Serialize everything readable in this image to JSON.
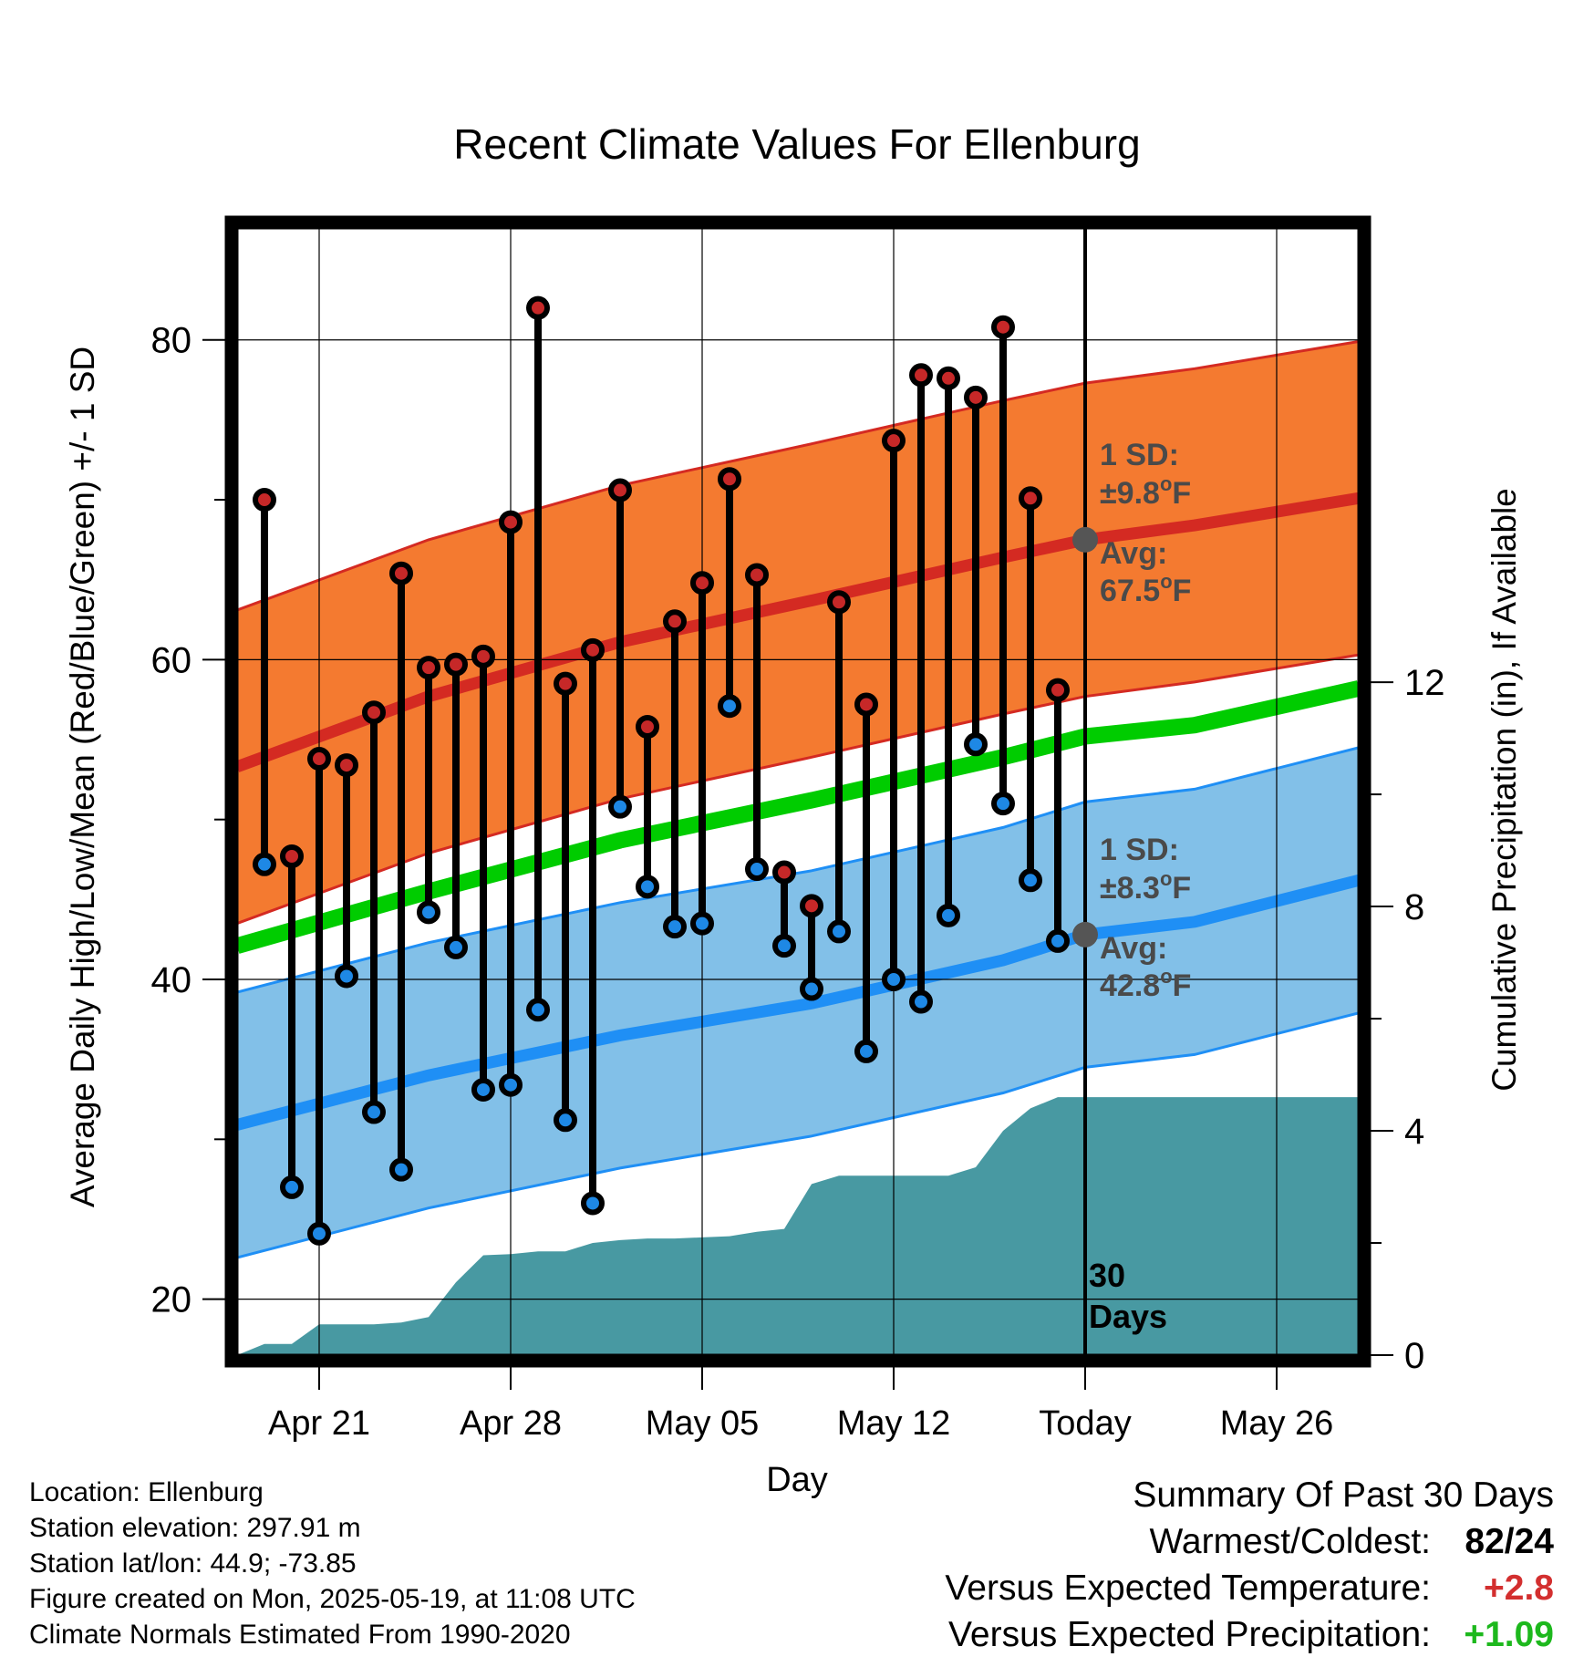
{
  "title": "Recent Climate Values For Ellenburg",
  "colors": {
    "high_sd_band": "#f47a30",
    "high_line": "#d42a22",
    "low_sd_band": "#82c0e8",
    "low_line": "#1f8ff5",
    "mean_line": "#00cc00",
    "precip": "#4899a2",
    "marker_high": "#c62828",
    "marker_low": "#1e88e5",
    "avg_marker": "#555555",
    "positive_temp": "#d32f2f",
    "positive_precip": "#1db81d"
  },
  "chart_data": {
    "type": "line",
    "title": "Recent Climate Values For Ellenburg",
    "xlabel": "Day",
    "ylabel": "Average Daily High/Low/Mean (Red/Blue/Green) +/- 1 SD",
    "ylabel_right": "Cumulative Precipitation (in), If Available",
    "x_ticks": [
      "Apr 21",
      "Apr 28",
      "May 05",
      "May 12",
      "Today",
      "May 26"
    ],
    "x_start": "2025-04-18",
    "x_end": "2025-05-29",
    "today": "2025-05-19",
    "ylim": [
      16.5,
      87
    ],
    "y_ticks": [
      20,
      40,
      60,
      80
    ],
    "ylim_right": [
      0,
      20.1
    ],
    "y_ticks_right": [
      0,
      4,
      8,
      12
    ],
    "grid": true,
    "daily_dates": [
      "2025-04-19",
      "2025-04-20",
      "2025-04-21",
      "2025-04-22",
      "2025-04-23",
      "2025-04-24",
      "2025-04-25",
      "2025-04-26",
      "2025-04-27",
      "2025-04-28",
      "2025-04-29",
      "2025-04-30",
      "2025-05-01",
      "2025-05-02",
      "2025-05-03",
      "2025-05-04",
      "2025-05-05",
      "2025-05-06",
      "2025-05-07",
      "2025-05-08",
      "2025-05-09",
      "2025-05-10",
      "2025-05-11",
      "2025-05-12",
      "2025-05-13",
      "2025-05-14",
      "2025-05-15",
      "2025-05-16",
      "2025-05-17",
      "2025-05-18"
    ],
    "daily_high": [
      70,
      47.7,
      53.8,
      53.4,
      56.7,
      65.4,
      59.5,
      59.7,
      60.2,
      68.6,
      82,
      58.5,
      60.6,
      70.6,
      55.8,
      62.4,
      64.8,
      71.3,
      65.3,
      46.7,
      44.6,
      63.6,
      57.2,
      73.7,
      77.8,
      77.6,
      76.4,
      80.8,
      70.1,
      58.1
    ],
    "daily_low": [
      47.2,
      27,
      24.1,
      40.2,
      31.7,
      28.1,
      44.2,
      42,
      33.1,
      33.4,
      38.1,
      31.2,
      26,
      50.8,
      45.8,
      43.3,
      43.5,
      57.1,
      46.9,
      42.1,
      39.4,
      43,
      35.5,
      40,
      38.6,
      44,
      54.7,
      51,
      46.2,
      42.4
    ],
    "normal_dates": [
      "2025-04-18",
      "2025-04-25",
      "2025-05-02",
      "2025-05-09",
      "2025-05-16",
      "2025-05-19",
      "2025-05-23",
      "2025-05-29"
    ],
    "normal_high": [
      53.3,
      57.7,
      61.1,
      63.7,
      66.4,
      67.5,
      68.4,
      70.1
    ],
    "high_sd": 9.8,
    "normal_low": [
      30.9,
      34,
      36.5,
      38.5,
      41.2,
      42.8,
      43.6,
      46.2
    ],
    "low_sd": 8.3,
    "normal_mean": [
      42.1,
      45.5,
      48.7,
      51.2,
      53.9,
      55.2,
      55.9,
      58.2
    ],
    "precip_dates": [
      "2025-04-18",
      "2025-04-19",
      "2025-04-20",
      "2025-04-21",
      "2025-04-22",
      "2025-04-23",
      "2025-04-24",
      "2025-04-25",
      "2025-04-26",
      "2025-04-27",
      "2025-04-28",
      "2025-04-29",
      "2025-04-30",
      "2025-05-01",
      "2025-05-02",
      "2025-05-03",
      "2025-05-04",
      "2025-05-05",
      "2025-05-06",
      "2025-05-07",
      "2025-05-08",
      "2025-05-09",
      "2025-05-10",
      "2025-05-11",
      "2025-05-12",
      "2025-05-13",
      "2025-05-14",
      "2025-05-15",
      "2025-05-16",
      "2025-05-17",
      "2025-05-18",
      "2025-05-19",
      "2025-05-29"
    ],
    "precip_cumulative": [
      0,
      0.2,
      0.2,
      0.55,
      0.55,
      0.55,
      0.58,
      0.68,
      1.3,
      1.78,
      1.8,
      1.85,
      1.85,
      2.0,
      2.05,
      2.08,
      2.08,
      2.1,
      2.12,
      2.2,
      2.25,
      3.05,
      3.2,
      3.2,
      3.2,
      3.2,
      3.2,
      3.35,
      4.0,
      4.4,
      4.6,
      4.6,
      4.6
    ],
    "annotations": {
      "high_sd_label": "1 SD:",
      "high_sd_value": "±9.8",
      "high_avg_label": "Avg:",
      "high_avg_value": "67.5",
      "low_sd_label": "1 SD:",
      "low_sd_value": "±8.3",
      "low_avg_label": "Avg:",
      "low_avg_value": "42.8",
      "degree_mark": "o",
      "unit": "F",
      "days_line1": "30",
      "days_line2": "Days"
    }
  },
  "footer": {
    "location": "Location: Ellenburg",
    "elevation": "Station elevation: 297.91 m",
    "latlon": "Station lat/lon: 44.9; -73.85",
    "created": "Figure created on Mon, 2025-05-19, at 11:08 UTC",
    "normals": "Climate Normals Estimated From 1990-2020"
  },
  "summary": {
    "heading": "Summary Of Past 30 Days",
    "warmest_coldest_label": "Warmest/Coldest:",
    "warmest_coldest_value": "82/24",
    "temp_label": "Versus Expected Temperature:",
    "temp_value": "+2.8",
    "precip_label": "Versus Expected Precipitation:",
    "precip_value": "+1.09"
  }
}
